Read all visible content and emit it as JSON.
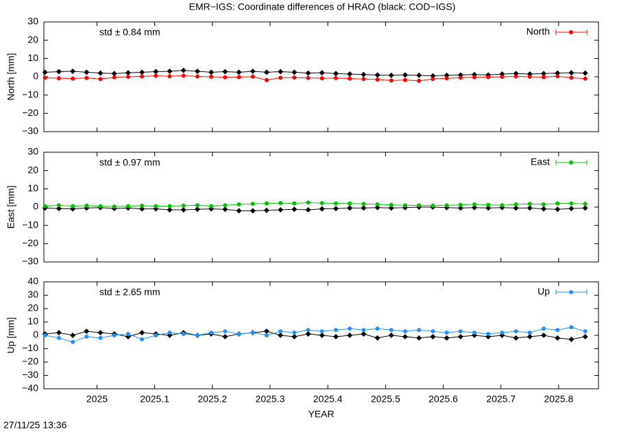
{
  "title": "EMR−IGS: Coordinate differences of HRAO (black: COD−IGS)",
  "timestamp": "27/11/25 13:36",
  "chart_data": [
    {
      "type": "line",
      "ylabel": "North [mm]",
      "annotation": "std ± 0.84 mm",
      "xlim": [
        2024.908,
        2025.869
      ],
      "ylim": [
        -30,
        30
      ],
      "yticks": [
        {
          "value": -30,
          "label": "−30"
        },
        {
          "value": -20,
          "label": "−20"
        },
        {
          "value": -10,
          "label": "−10"
        },
        0,
        10,
        20,
        30
      ],
      "x": [
        2024.91,
        2024.934,
        2024.958,
        2024.982,
        2025.006,
        2025.03,
        2025.054,
        2025.078,
        2025.102,
        2025.126,
        2025.15,
        2025.174,
        2025.198,
        2025.222,
        2025.246,
        2025.27,
        2025.294,
        2025.318,
        2025.342,
        2025.366,
        2025.39,
        2025.414,
        2025.438,
        2025.462,
        2025.486,
        2025.51,
        2025.534,
        2025.558,
        2025.582,
        2025.606,
        2025.63,
        2025.654,
        2025.678,
        2025.702,
        2025.726,
        2025.75,
        2025.774,
        2025.798,
        2025.822,
        2025.846
      ],
      "series": [
        {
          "name": "North",
          "color": "#ff0000",
          "values": [
            -0.5,
            -0.8,
            -1,
            -0.6,
            -1.2,
            -0.3,
            0,
            0.2,
            0.5,
            0.3,
            0.6,
            0.2,
            0,
            -0.3,
            -0.2,
            0.1,
            -1.8,
            -0.5,
            -0.4,
            -0.6,
            -0.8,
            -0.7,
            -1,
            -1.2,
            -1.5,
            -2,
            -1.8,
            -2.2,
            -1.2,
            -0.8,
            -0.5,
            -0.3,
            -0.2,
            0,
            0.2,
            0,
            -0.2,
            0.3,
            -0.5,
            -1
          ]
        },
        {
          "color": "#000000",
          "values": [
            2.5,
            2.8,
            3,
            2.5,
            2,
            1.8,
            2.2,
            2.5,
            2.8,
            3,
            3.5,
            3,
            2.5,
            2.8,
            2.5,
            3,
            2.5,
            2.8,
            2.5,
            2,
            2.2,
            1.8,
            1.5,
            1.2,
            1,
            0.8,
            1,
            0.8,
            0.5,
            0.8,
            1,
            1.2,
            1,
            1.5,
            1.8,
            1.5,
            1.8,
            2,
            2.2,
            2
          ]
        }
      ]
    },
    {
      "type": "line",
      "ylabel": "East [mm]",
      "annotation": "std ± 0.97 mm",
      "xlim": [
        2024.908,
        2025.869
      ],
      "ylim": [
        -30,
        30
      ],
      "yticks": [
        {
          "value": -30,
          "label": "−30"
        },
        {
          "value": -20,
          "label": "−20"
        },
        {
          "value": -10,
          "label": "−10"
        },
        0,
        10,
        20,
        30
      ],
      "x": [
        2024.91,
        2024.934,
        2024.958,
        2024.982,
        2025.006,
        2025.03,
        2025.054,
        2025.078,
        2025.102,
        2025.126,
        2025.15,
        2025.174,
        2025.198,
        2025.222,
        2025.246,
        2025.27,
        2025.294,
        2025.318,
        2025.342,
        2025.366,
        2025.39,
        2025.414,
        2025.438,
        2025.462,
        2025.486,
        2025.51,
        2025.534,
        2025.558,
        2025.582,
        2025.606,
        2025.63,
        2025.654,
        2025.678,
        2025.702,
        2025.726,
        2025.75,
        2025.774,
        2025.798,
        2025.822,
        2025.846
      ],
      "series": [
        {
          "name": "East",
          "color": "#00c000",
          "values": [
            0.5,
            1,
            0.5,
            0.8,
            0.5,
            0.3,
            0.5,
            0.8,
            0.5,
            0.5,
            0.8,
            1,
            0.5,
            1,
            1.5,
            1.8,
            2,
            2.2,
            2,
            2.5,
            2.2,
            2,
            2,
            1.8,
            1.5,
            1.2,
            1,
            1,
            0.8,
            1,
            1.2,
            1.5,
            1.2,
            1,
            1.5,
            1.8,
            1.5,
            2,
            2,
            1.8
          ]
        },
        {
          "color": "#000000",
          "values": [
            -0.5,
            -0.8,
            -1,
            -0.5,
            -0.3,
            -0.8,
            -0.5,
            -1,
            -1,
            -1.5,
            -1.5,
            -1.2,
            -1,
            -1.2,
            -2,
            -2,
            -1.8,
            -1.5,
            -1.2,
            -1.5,
            -1,
            -0.8,
            -0.5,
            -0.5,
            -0.3,
            -0.5,
            -0.3,
            0,
            0,
            -0.3,
            -0.5,
            -0.3,
            -0.5,
            -0.3,
            -0.5,
            -0.5,
            -1,
            -1.2,
            -0.8,
            -0.5
          ]
        }
      ]
    },
    {
      "type": "line",
      "ylabel": "Up [mm]",
      "annotation": "std ± 2.65 mm",
      "xlabel": "YEAR",
      "xlim": [
        2024.908,
        2025.869
      ],
      "ylim": [
        -40,
        40
      ],
      "yticks": [
        {
          "value": -40,
          "label": "−40"
        },
        {
          "value": -30,
          "label": "−30"
        },
        {
          "value": -20,
          "label": "−20"
        },
        {
          "value": -10,
          "label": "−10"
        },
        0,
        10,
        20,
        30,
        40
      ],
      "xticks": [
        2025,
        2025.1,
        2025.2,
        2025.3,
        2025.4,
        2025.5,
        2025.6,
        2025.7,
        2025.8
      ],
      "x": [
        2024.91,
        2024.934,
        2024.958,
        2024.982,
        2025.006,
        2025.03,
        2025.054,
        2025.078,
        2025.102,
        2025.126,
        2025.15,
        2025.174,
        2025.198,
        2025.222,
        2025.246,
        2025.27,
        2025.294,
        2025.318,
        2025.342,
        2025.366,
        2025.39,
        2025.414,
        2025.438,
        2025.462,
        2025.486,
        2025.51,
        2025.534,
        2025.558,
        2025.582,
        2025.606,
        2025.63,
        2025.654,
        2025.678,
        2025.702,
        2025.726,
        2025.75,
        2025.774,
        2025.798,
        2025.822,
        2025.846
      ],
      "series": [
        {
          "name": "Up",
          "color": "#1e90ff",
          "values": [
            0,
            -2,
            -5,
            -1,
            -2,
            0,
            1,
            -3,
            0,
            2,
            1,
            0,
            2,
            3,
            1,
            2,
            0,
            3,
            2,
            4,
            3,
            4,
            5,
            4,
            5,
            4,
            3,
            4,
            3,
            2,
            3,
            2,
            1,
            2,
            3,
            2,
            5,
            4,
            6,
            3
          ]
        },
        {
          "color": "#000000",
          "values": [
            1,
            2,
            0,
            3,
            2,
            1,
            -1,
            2,
            1,
            0,
            2,
            0,
            1,
            -1,
            1,
            2,
            3,
            0,
            -1,
            1,
            0,
            -1,
            0,
            1,
            -2,
            0,
            -1,
            -2,
            -1,
            -2,
            -1,
            0,
            -1,
            0,
            -2,
            -1,
            0,
            -2,
            -3,
            -1
          ]
        }
      ]
    }
  ]
}
